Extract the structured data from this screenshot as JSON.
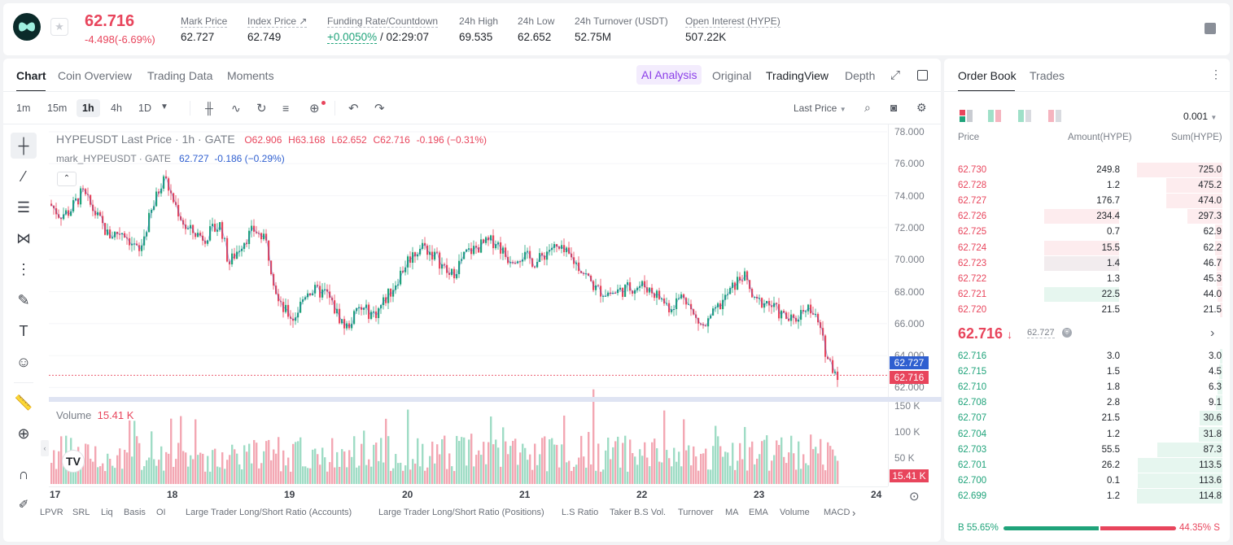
{
  "ticker": {
    "last_price": "62.716",
    "change": "-4.498(-6.69%)",
    "stats": [
      {
        "label": "Mark Price",
        "value": "62.727"
      },
      {
        "label": "Index Price ↗",
        "value": "62.749"
      },
      {
        "label": "Funding Rate/Countdown",
        "value_green": "+0.0050%",
        "value": " / 02:29:07"
      },
      {
        "label": "24h High",
        "value": "69.535"
      },
      {
        "label": "24h Low",
        "value": "62.652"
      },
      {
        "label": "24h Turnover (USDT)",
        "value": "52.75M"
      },
      {
        "label": "Open Interest (HYPE)",
        "value": "507.22K"
      }
    ]
  },
  "chart_tabs": [
    "Chart",
    "Coin Overview",
    "Trading Data",
    "Moments"
  ],
  "view_tabs": {
    "ai": "AI Analysis",
    "original": "Original",
    "tradingview": "TradingView",
    "depth": "Depth"
  },
  "timeframes": [
    "1m",
    "15m",
    "1h",
    "4h",
    "1D"
  ],
  "price_source": "Last Price",
  "legend": {
    "symbol": "HYPEUSDT Last Price · 1h · GATE",
    "o": "O62.906",
    "h": "H63.168",
    "l": "L62.652",
    "c": "C62.716",
    "chg": "-0.196 (−0.31%)",
    "mark_label": "mark_HYPEUSDT · GATE",
    "mark_value": "62.727",
    "mark_chg": "-0.186 (−0.29%)"
  },
  "price_axis": [
    "78.000",
    "76.000",
    "74.000",
    "72.000",
    "70.000",
    "68.000",
    "66.000",
    "64.000",
    "62.000"
  ],
  "mark_tag": "62.727",
  "last_tag": "62.716",
  "volume": {
    "label": "Volume",
    "value": "15.41 K",
    "axis": [
      "150 K",
      "100 K",
      "50 K"
    ],
    "tag": "15.41 K"
  },
  "date_axis": [
    "17",
    "18",
    "19",
    "20",
    "21",
    "22",
    "23",
    "24"
  ],
  "indicators": [
    "LPVR",
    "SRL",
    "Liq",
    "Basis",
    "OI",
    "Large Trader Long/Short Ratio (Accounts)",
    "Large Trader Long/Short Ratio (Positions)",
    "L.S Ratio",
    "Taker B.S Vol.",
    "Turnover",
    "MA",
    "EMA",
    "Volume",
    "MACD"
  ],
  "orderbook": {
    "tabs": [
      "Order Book",
      "Trades"
    ],
    "precision": "0.001",
    "headers": {
      "price": "Price",
      "amount": "Amount(HYPE)",
      "sum": "Sum(HYPE)"
    },
    "asks": [
      {
        "price": "62.730",
        "amount": "249.8",
        "sum": "725.0",
        "depth": 1.0,
        "amt_frac": 0
      },
      {
        "price": "62.728",
        "amount": "1.2",
        "sum": "475.2",
        "depth": 0.655,
        "amt_frac": 0
      },
      {
        "price": "62.727",
        "amount": "176.7",
        "sum": "474.0",
        "depth": 0.654,
        "amt_frac": 0
      },
      {
        "price": "62.726",
        "amount": "234.4",
        "sum": "297.3",
        "depth": 0.41,
        "amt_frac": 0.94
      },
      {
        "price": "62.725",
        "amount": "0.7",
        "sum": "62.9",
        "depth": 0.087,
        "amt_frac": 0
      },
      {
        "price": "62.724",
        "amount": "15.5",
        "sum": "62.2",
        "depth": 0.086,
        "amt_frac": 0.94
      },
      {
        "price": "62.723",
        "amount": "1.4",
        "sum": "46.7",
        "depth": 0.064,
        "amt_frac": 0.94
      },
      {
        "price": "62.722",
        "amount": "1.3",
        "sum": "45.3",
        "depth": 0.062,
        "amt_frac": 0
      },
      {
        "price": "62.721",
        "amount": "22.5",
        "sum": "44.0",
        "depth": 0.061,
        "amt_frac": 0.94
      },
      {
        "price": "62.720",
        "amount": "21.5",
        "sum": "21.5",
        "depth": 0.03,
        "amt_frac": 0
      }
    ],
    "mid_price": "62.716",
    "mid_mark": "62.727",
    "bids": [
      {
        "price": "62.716",
        "amount": "3.0",
        "sum": "3.0",
        "depth": 0.026
      },
      {
        "price": "62.715",
        "amount": "1.5",
        "sum": "4.5",
        "depth": 0.039
      },
      {
        "price": "62.710",
        "amount": "1.8",
        "sum": "6.3",
        "depth": 0.055
      },
      {
        "price": "62.708",
        "amount": "2.8",
        "sum": "9.1",
        "depth": 0.079
      },
      {
        "price": "62.707",
        "amount": "21.5",
        "sum": "30.6",
        "depth": 0.27
      },
      {
        "price": "62.704",
        "amount": "1.2",
        "sum": "31.8",
        "depth": 0.28
      },
      {
        "price": "62.703",
        "amount": "55.5",
        "sum": "87.3",
        "depth": 0.76
      },
      {
        "price": "62.701",
        "amount": "26.2",
        "sum": "113.5",
        "depth": 0.99
      },
      {
        "price": "62.700",
        "amount": "0.1",
        "sum": "113.6",
        "depth": 0.99
      },
      {
        "price": "62.699",
        "amount": "1.2",
        "sum": "114.8",
        "depth": 1.0
      }
    ],
    "buy_ratio": "B 55.65%",
    "sell_ratio": "44.35% S",
    "buy_frac": 0.5565
  },
  "colors": {
    "up": "#1fa37a",
    "down": "#e8455c",
    "accent_blue": "#2f5fd0",
    "ai_purple": "#8b3fe8"
  }
}
